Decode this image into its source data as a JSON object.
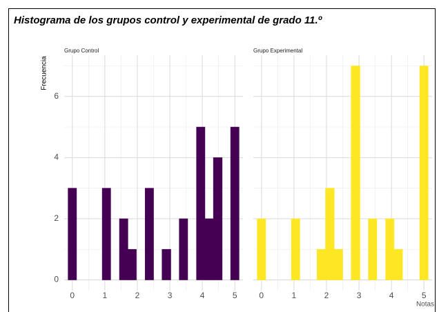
{
  "chart_data": {
    "type": "histogram",
    "title": "Histograma de los grupos control y experimental de grado 11.º",
    "y_label": "Frecuencia",
    "x_label": "Notas",
    "bins": [
      -0.13,
      0.13,
      0.39,
      0.66,
      0.92,
      1.18,
      1.45,
      1.71,
      1.97,
      2.24,
      2.5,
      2.76,
      3.03,
      3.29,
      3.55,
      3.82,
      4.08,
      4.34,
      4.61,
      4.87,
      5.13
    ],
    "series": [
      {
        "name": "Grupo Control",
        "color": "#440154",
        "values": [
          3,
          0,
          0,
          0,
          3,
          0,
          2,
          1,
          0,
          3,
          0,
          1,
          0,
          2,
          0,
          5,
          2,
          4,
          0,
          5
        ]
      },
      {
        "name": "Grupo Experimental",
        "color": "#fde725",
        "values": [
          2,
          0,
          0,
          0,
          2,
          0,
          0,
          1,
          3,
          1,
          0,
          7,
          0,
          2,
          0,
          2,
          1,
          0,
          0,
          7
        ]
      }
    ],
    "xlim": [
      -0.25,
      5.25
    ],
    "xticks": [
      0,
      1,
      2,
      3,
      4,
      5
    ],
    "ylim": [
      -0.35,
      7.35
    ],
    "yticks": [
      0,
      2,
      4,
      6
    ],
    "grid": true
  }
}
